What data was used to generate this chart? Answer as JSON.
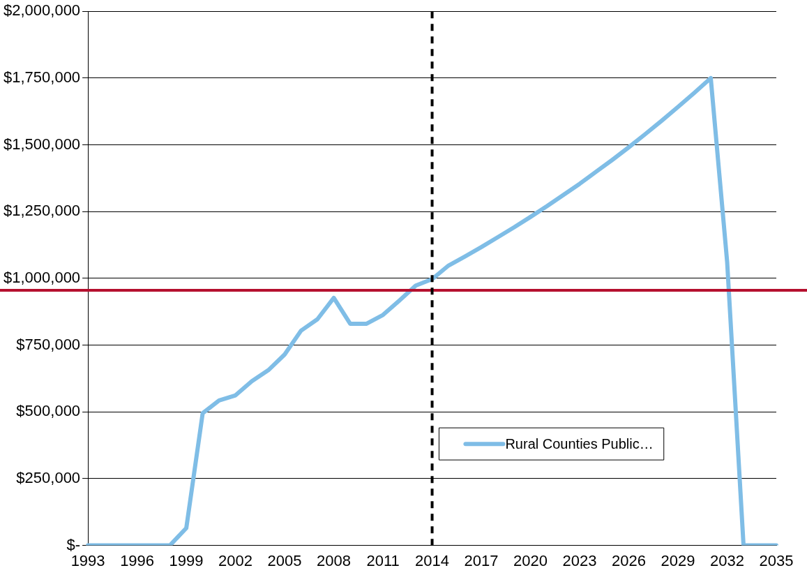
{
  "chart_data": {
    "type": "line",
    "categories": [
      "1993",
      null,
      null,
      "1996",
      null,
      null,
      "1999",
      null,
      null,
      "2002",
      null,
      null,
      "2005",
      null,
      null,
      "2008",
      null,
      null,
      "2011",
      null,
      null,
      "2014",
      null,
      null,
      "2017",
      null,
      null,
      "2020",
      null,
      null,
      "2023",
      null,
      null,
      "2026",
      null,
      null,
      "2029",
      null,
      null,
      "2032",
      null,
      null,
      "2035"
    ],
    "series": [
      {
        "name": "Rural Counties Public…",
        "color": "#7fbde6",
        "values": [
          0,
          0,
          0,
          0,
          0,
          0,
          65000,
          495000,
          543000,
          562000,
          615000,
          656000,
          715000,
          804000,
          847000,
          927000,
          830000,
          830000,
          863000,
          917000,
          973000,
          997000,
          1048000,
          1082000,
          1117000,
          1154000,
          1191000,
          1230000,
          1270000,
          1312000,
          1354000,
          1399000,
          1444000,
          1491000,
          1540000,
          1590000,
          1642000,
          1695000,
          1750000,
          1062000,
          0,
          0,
          0
        ]
      }
    ],
    "ylim": [
      0,
      2000000
    ],
    "yticks": [
      {
        "value": 0,
        "label": "$-"
      },
      {
        "value": 250000,
        "label": "$250,000"
      },
      {
        "value": 500000,
        "label": "$500,000"
      },
      {
        "value": 750000,
        "label": "$750,000"
      },
      {
        "value": 1000000,
        "label": "$1,000,000"
      },
      {
        "value": 1250000,
        "label": "$1,250,000"
      },
      {
        "value": 1500000,
        "label": "$1,500,000"
      },
      {
        "value": 1750000,
        "label": "$1,750,000"
      },
      {
        "value": 2000000,
        "label": "$2,000,000"
      }
    ],
    "grid": "y",
    "legend": "bottom right",
    "marker": "none",
    "line_style": "solid",
    "ref_lines": [
      {
        "axis": "y",
        "value": 955000,
        "color": "#b5102f",
        "line_style": "solid"
      },
      {
        "axis": "x",
        "value": "2014",
        "color": "#000000",
        "line_style": "dashed"
      }
    ]
  }
}
